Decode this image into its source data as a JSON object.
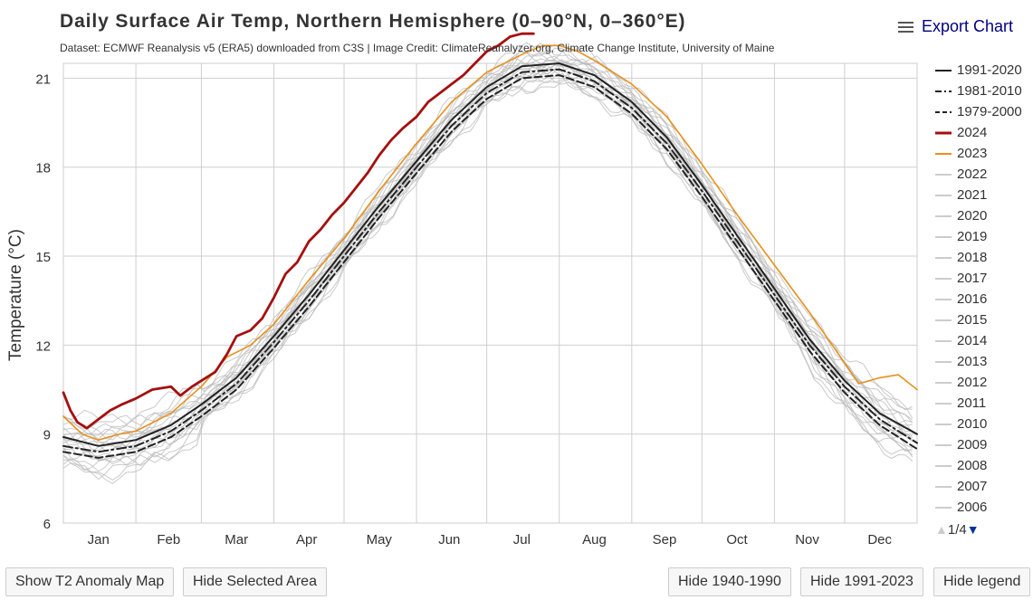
{
  "header": {
    "title": "Daily Surface Air Temp, Northern Hemisphere (0–90°N, 0–360°E)",
    "subtitle": "Dataset: ECMWF Reanalysis v5 (ERA5) downloaded from C3S | Image Credit: ClimateReanalyzer.org, Climate Change Institute, University of Maine",
    "export_label": "Export Chart"
  },
  "legend": {
    "items": [
      {
        "label": "1991-2020",
        "style": "solid",
        "color": "#222222"
      },
      {
        "label": "1981-2010",
        "style": "dashdot",
        "color": "#222222"
      },
      {
        "label": "1979-2000",
        "style": "dash",
        "color": "#222222"
      },
      {
        "label": "2024",
        "style": "thick",
        "color": "#a50f0f"
      },
      {
        "label": "2023",
        "style": "solid",
        "color": "#e8901c"
      },
      {
        "label": "2022",
        "style": "solid",
        "color": "#cccccc"
      },
      {
        "label": "2021",
        "style": "solid",
        "color": "#cccccc"
      },
      {
        "label": "2020",
        "style": "solid",
        "color": "#cccccc"
      },
      {
        "label": "2019",
        "style": "solid",
        "color": "#cccccc"
      },
      {
        "label": "2018",
        "style": "solid",
        "color": "#cccccc"
      },
      {
        "label": "2017",
        "style": "solid",
        "color": "#cccccc"
      },
      {
        "label": "2016",
        "style": "solid",
        "color": "#cccccc"
      },
      {
        "label": "2015",
        "style": "solid",
        "color": "#cccccc"
      },
      {
        "label": "2014",
        "style": "solid",
        "color": "#cccccc"
      },
      {
        "label": "2013",
        "style": "solid",
        "color": "#cccccc"
      },
      {
        "label": "2012",
        "style": "solid",
        "color": "#cccccc"
      },
      {
        "label": "2011",
        "style": "solid",
        "color": "#cccccc"
      },
      {
        "label": "2010",
        "style": "solid",
        "color": "#cccccc"
      },
      {
        "label": "2009",
        "style": "solid",
        "color": "#cccccc"
      },
      {
        "label": "2008",
        "style": "solid",
        "color": "#cccccc"
      },
      {
        "label": "2007",
        "style": "solid",
        "color": "#cccccc"
      },
      {
        "label": "2006",
        "style": "solid",
        "color": "#cccccc"
      }
    ],
    "page": "1/4",
    "up_icon": "arrow-up-icon",
    "down_icon": "arrow-down-icon"
  },
  "buttons": {
    "anomaly_map": "Show T2 Anomaly Map",
    "hide_area": "Hide Selected Area",
    "hide_1940": "Hide 1940-1990",
    "hide_1991": "Hide 1991-2023",
    "hide_legend": "Hide legend"
  },
  "chart_data": {
    "type": "line",
    "title": "Daily Surface Air Temp, Northern Hemisphere (0–90°N, 0–360°E)",
    "xlabel": "",
    "ylabel": "Temperature (°C)",
    "xlim": [
      0,
      365
    ],
    "ylim": [
      6,
      21.5
    ],
    "y_ticks": [
      6,
      9,
      12,
      15,
      18,
      21
    ],
    "x_ticks": [
      {
        "label": "Jan",
        "day": 15
      },
      {
        "label": "Feb",
        "day": 45
      },
      {
        "label": "Mar",
        "day": 74
      },
      {
        "label": "Apr",
        "day": 104
      },
      {
        "label": "May",
        "day": 135
      },
      {
        "label": "Jun",
        "day": 165
      },
      {
        "label": "Jul",
        "day": 196
      },
      {
        "label": "Aug",
        "day": 227
      },
      {
        "label": "Sep",
        "day": 257
      },
      {
        "label": "Oct",
        "day": 288
      },
      {
        "label": "Nov",
        "day": 318
      },
      {
        "label": "Dec",
        "day": 349
      }
    ],
    "month_gridlines": [
      31,
      59,
      90,
      120,
      151,
      181,
      212,
      243,
      273,
      304,
      334
    ],
    "grid": true,
    "historical_envelope": {
      "name": "1940-2022 (individual years)",
      "color": "#b8b8b8",
      "offsets": [
        -0.7,
        -0.55,
        -0.45,
        -0.35,
        -0.28,
        -0.2,
        -0.12,
        -0.05,
        0.02,
        0.1,
        0.18,
        0.26,
        0.35,
        0.45,
        0.58,
        -0.62,
        -0.4,
        0.3,
        0.05,
        -0.15
      ]
    },
    "series": [
      {
        "name": "1991-2020",
        "style": "solid",
        "color": "#222222",
        "width": 2,
        "x": [
          0,
          15,
          31,
          46,
          59,
          74,
          90,
          105,
          120,
          135,
          151,
          166,
          181,
          196,
          212,
          227,
          243,
          258,
          273,
          288,
          304,
          319,
          334,
          349,
          365
        ],
        "y": [
          8.9,
          8.6,
          8.8,
          9.3,
          10.0,
          10.9,
          12.3,
          13.7,
          15.2,
          16.7,
          18.2,
          19.6,
          20.7,
          21.4,
          21.5,
          21.1,
          20.2,
          19.0,
          17.4,
          15.7,
          13.9,
          12.2,
          10.8,
          9.7,
          9.0
        ]
      },
      {
        "name": "1981-2010",
        "style": "dashdot",
        "color": "#222222",
        "width": 2,
        "x": [
          0,
          15,
          31,
          46,
          59,
          74,
          90,
          105,
          120,
          135,
          151,
          166,
          181,
          196,
          212,
          227,
          243,
          258,
          273,
          288,
          304,
          319,
          334,
          349,
          365
        ],
        "y": [
          8.6,
          8.4,
          8.6,
          9.1,
          9.8,
          10.7,
          12.1,
          13.5,
          15.0,
          16.5,
          18.0,
          19.4,
          20.5,
          21.2,
          21.3,
          20.9,
          20.0,
          18.8,
          17.2,
          15.5,
          13.7,
          12.0,
          10.6,
          9.5,
          8.7
        ]
      },
      {
        "name": "1979-2000",
        "style": "dash",
        "color": "#222222",
        "width": 2,
        "x": [
          0,
          15,
          31,
          46,
          59,
          74,
          90,
          105,
          120,
          135,
          151,
          166,
          181,
          196,
          212,
          227,
          243,
          258,
          273,
          288,
          304,
          319,
          334,
          349,
          365
        ],
        "y": [
          8.4,
          8.2,
          8.4,
          8.9,
          9.6,
          10.5,
          11.9,
          13.3,
          14.8,
          16.3,
          17.8,
          19.2,
          20.3,
          21.0,
          21.1,
          20.7,
          19.8,
          18.6,
          17.0,
          15.3,
          13.5,
          11.8,
          10.4,
          9.3,
          8.5
        ]
      },
      {
        "name": "2023",
        "style": "solid",
        "color": "#e8901c",
        "width": 1.6,
        "x": [
          0,
          8,
          15,
          24,
          31,
          46,
          59,
          70,
          80,
          90,
          105,
          120,
          135,
          151,
          166,
          181,
          196,
          205,
          212,
          220,
          227,
          243,
          258,
          273,
          288,
          304,
          319,
          334,
          340,
          349,
          357,
          365
        ],
        "y": [
          9.6,
          9.0,
          8.8,
          9.0,
          9.1,
          9.7,
          10.6,
          11.6,
          12.0,
          12.7,
          14.2,
          15.6,
          17.2,
          18.8,
          20.2,
          21.2,
          21.8,
          22.1,
          22.1,
          21.9,
          21.6,
          20.8,
          19.7,
          18.1,
          16.4,
          14.7,
          13.1,
          11.4,
          10.7,
          10.9,
          11.0,
          10.5
        ]
      },
      {
        "name": "2024",
        "style": "thick",
        "color": "#a50f0f",
        "width": 2.8,
        "x": [
          0,
          3,
          6,
          10,
          15,
          20,
          25,
          31,
          38,
          46,
          50,
          55,
          59,
          65,
          70,
          74,
          80,
          85,
          90,
          95,
          100,
          105,
          110,
          115,
          120,
          125,
          130,
          135,
          140,
          145,
          151,
          156,
          161,
          166,
          171,
          176,
          181,
          186,
          191,
          196,
          201
        ],
        "y": [
          10.4,
          9.8,
          9.4,
          9.2,
          9.5,
          9.8,
          10.0,
          10.2,
          10.5,
          10.6,
          10.3,
          10.6,
          10.8,
          11.1,
          11.7,
          12.3,
          12.5,
          12.9,
          13.6,
          14.4,
          14.8,
          15.5,
          15.9,
          16.4,
          16.8,
          17.3,
          17.8,
          18.4,
          18.9,
          19.3,
          19.7,
          20.2,
          20.5,
          20.8,
          21.1,
          21.5,
          21.9,
          22.1,
          22.4,
          22.5,
          22.5
        ]
      }
    ]
  }
}
